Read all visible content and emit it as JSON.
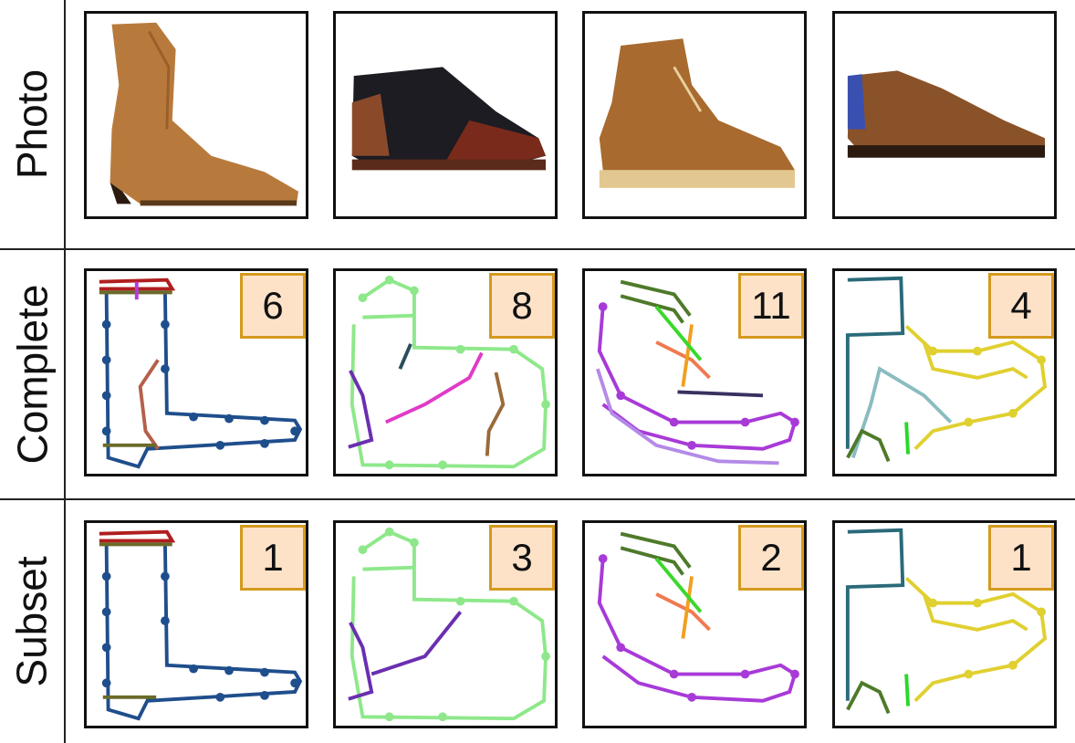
{
  "rows": [
    {
      "label": "Photo"
    },
    {
      "label": "Complete",
      "counts": [
        "6",
        "8",
        "11",
        "4"
      ]
    },
    {
      "label": "Subset",
      "counts": [
        "1",
        "3",
        "2",
        "1"
      ]
    }
  ],
  "photos": [
    {
      "icon": "ankle-boot-photo",
      "color": "#b87a3c"
    },
    {
      "icon": "black-brown-brogue-photo",
      "color": "#1c1c22"
    },
    {
      "icon": "desert-chukka-boot-photo",
      "color": "#a86a2e"
    },
    {
      "icon": "brown-oxford-shoe-photo",
      "color": "#8a5228"
    }
  ],
  "colors": {
    "navy": "#1f4e8c",
    "red": "#b01e1e",
    "olive": "#6b6b2a",
    "magenta": "#b83ad8",
    "rust": "#b5604a",
    "light_green": "#8ee88a",
    "dark_teal": "#2a4e5a",
    "purple": "#6a2fb0",
    "pink": "#e13ac8",
    "brown": "#9a6a3a",
    "dark_green": "#4e7a2a",
    "orange": "#f0a020",
    "salmon": "#f07a50",
    "bright_green": "#3ad82a",
    "violet": "#a83ad8",
    "lavender": "#b48ae8",
    "dark_purple": "#3a3060",
    "teal": "#2a6a7a",
    "yellow": "#e0d030",
    "pale_teal": "#8abcc0",
    "green_stroke": "#2ad82a"
  }
}
